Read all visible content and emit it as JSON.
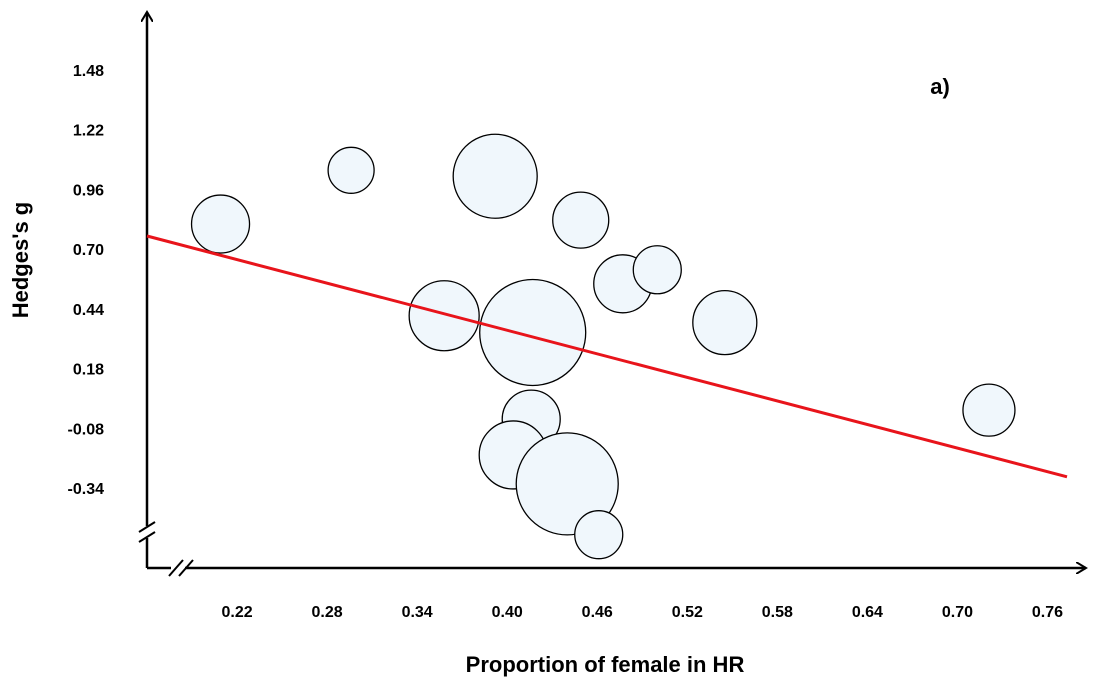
{
  "chart_data": {
    "type": "bubble",
    "xlabel": "Proportion of female in HR",
    "ylabel": "Hedges's g",
    "annotation": "a)",
    "xlim": [
      0.16,
      0.775
    ],
    "ylim": [
      -0.68,
      1.74
    ],
    "xticks": [
      0.22,
      0.28,
      0.34,
      {
        "value": 0.4,
        "label": "0.40"
      },
      0.46,
      0.52,
      0.58,
      0.64,
      {
        "value": 0.7,
        "label": "0.70"
      },
      0.76
    ],
    "yticks": [
      1.48,
      1.22,
      0.96,
      {
        "value": 0.7,
        "label": "0.70"
      },
      0.44,
      0.18,
      -0.08,
      -0.34
    ],
    "series": [
      {
        "type": "bubble",
        "color": "#f0f7fc",
        "x": [
          0.209,
          0.296,
          0.392,
          0.449,
          0.477,
          0.5,
          0.545,
          0.358,
          0.417,
          0.721,
          0.416,
          0.404,
          0.44,
          0.461
        ],
        "values": [
          0.817,
          1.051,
          1.025,
          0.834,
          0.557,
          0.618,
          0.388,
          0.418,
          0.345,
          0.007,
          -0.032,
          -0.188,
          -0.314,
          -0.535
        ],
        "sizes": [
          29,
          23,
          42,
          28,
          29,
          24,
          32,
          35,
          53,
          26,
          29,
          34,
          51,
          24
        ]
      },
      {
        "type": "line",
        "color": "#e8141b",
        "x": [
          0.16,
          0.773
        ],
        "values": [
          0.765,
          -0.283
        ]
      }
    ]
  }
}
